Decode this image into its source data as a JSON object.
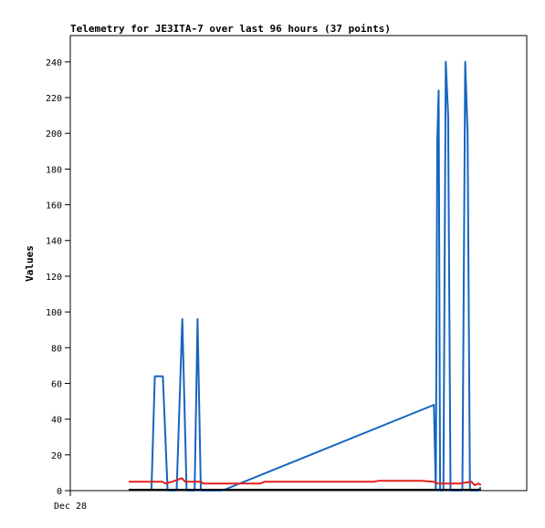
{
  "chart_data": {
    "type": "line",
    "title": "Telemetry for JE3ITA-7 over last 96 hours (37 points)",
    "xlabel": "",
    "ylabel": "Values",
    "ylim": [
      0,
      255
    ],
    "xlim": [
      0,
      96
    ],
    "yticks": [
      0,
      20,
      40,
      60,
      80,
      100,
      120,
      140,
      160,
      180,
      200,
      220,
      240
    ],
    "xticks": [
      {
        "x": 0,
        "label": "Dec 28"
      }
    ],
    "grid": false,
    "series": [
      {
        "color": "#1565c0",
        "points": [
          [
            17.1,
            0
          ],
          [
            17.8,
            64
          ],
          [
            19.5,
            64
          ],
          [
            20.5,
            0
          ],
          [
            22.4,
            0
          ],
          [
            23.6,
            96
          ],
          [
            24.5,
            0
          ],
          [
            26.2,
            0
          ],
          [
            26.8,
            96
          ],
          [
            27.5,
            0
          ],
          [
            32.0,
            0
          ],
          [
            76.6,
            48
          ],
          [
            77.0,
            0
          ],
          [
            77.3,
            196
          ],
          [
            77.6,
            224
          ],
          [
            77.9,
            0
          ],
          [
            78.6,
            0
          ],
          [
            79.1,
            240
          ],
          [
            79.6,
            210
          ],
          [
            80.1,
            0
          ],
          [
            82.6,
            0
          ],
          [
            83.2,
            240
          ],
          [
            83.7,
            200
          ],
          [
            84.2,
            0
          ],
          [
            86.1,
            0
          ],
          [
            86.4,
            2
          ]
        ]
      },
      {
        "color": "#e0201c",
        "points": [
          [
            12.3,
            5
          ],
          [
            19.4,
            5
          ],
          [
            20.0,
            4
          ],
          [
            21.5,
            5
          ],
          [
            23.5,
            7
          ],
          [
            24.2,
            5
          ],
          [
            27.5,
            5
          ],
          [
            28.0,
            4
          ],
          [
            40.0,
            4
          ],
          [
            41.0,
            5
          ],
          [
            64.0,
            5
          ],
          [
            65.0,
            5.5
          ],
          [
            74.0,
            5.5
          ],
          [
            76.5,
            5
          ],
          [
            77.5,
            4
          ],
          [
            82.0,
            4
          ],
          [
            84.5,
            5
          ],
          [
            85.2,
            3
          ],
          [
            86.0,
            4
          ],
          [
            86.5,
            3
          ]
        ]
      },
      {
        "color": "#000000",
        "points": [
          [
            12.3,
            0.5
          ],
          [
            86.5,
            0.5
          ]
        ]
      }
    ]
  }
}
